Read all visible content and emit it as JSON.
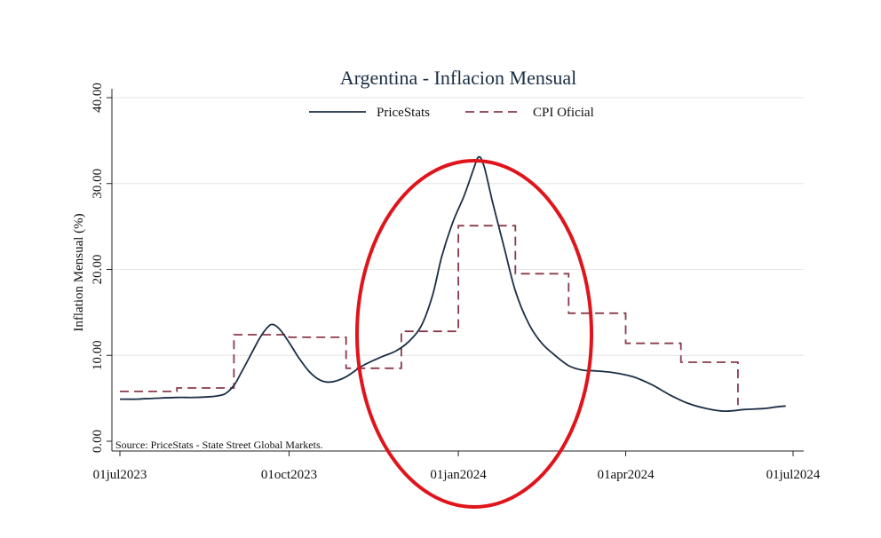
{
  "chart_data": {
    "type": "line",
    "title": "Argentina - Inflacion Mensual",
    "ylabel": "Inflation Mensual (%)",
    "xlabel": "",
    "ylim": [
      0,
      40
    ],
    "yticks": [
      "0.00",
      "10.00",
      "20.00",
      "30.00",
      "40.00"
    ],
    "xticks": [
      {
        "date": "2023-07-01",
        "label": "01jul2023"
      },
      {
        "date": "2023-10-01",
        "label": "01oct2023"
      },
      {
        "date": "2024-01-01",
        "label": "01jan2024"
      },
      {
        "date": "2024-04-01",
        "label": "01apr2024"
      },
      {
        "date": "2024-07-01",
        "label": "01jul2024"
      }
    ],
    "xlim": [
      "2023-07-01",
      "2024-07-01"
    ],
    "grid": "horizontal",
    "legend_position": "top",
    "note": "Source: PriceStats - State Street Global Markets.",
    "highlight": "red ellipse around December 2023 - February 2024",
    "series": [
      {
        "name": "PriceStats",
        "style": "solid",
        "color": "#1a2f45",
        "points": [
          [
            "2023-07-01",
            4.9
          ],
          [
            "2023-07-10",
            4.9
          ],
          [
            "2023-07-20",
            5.0
          ],
          [
            "2023-08-01",
            5.1
          ],
          [
            "2023-08-10",
            5.1
          ],
          [
            "2023-08-20",
            5.2
          ],
          [
            "2023-08-27",
            5.5
          ],
          [
            "2023-09-01",
            6.5
          ],
          [
            "2023-09-05",
            8.0
          ],
          [
            "2023-09-10",
            10.0
          ],
          [
            "2023-09-15",
            12.0
          ],
          [
            "2023-09-19",
            13.2
          ],
          [
            "2023-09-22",
            13.6
          ],
          [
            "2023-09-26",
            13.0
          ],
          [
            "2023-10-01",
            11.5
          ],
          [
            "2023-10-06",
            9.8
          ],
          [
            "2023-10-12",
            8.1
          ],
          [
            "2023-10-18",
            7.1
          ],
          [
            "2023-10-24",
            6.9
          ],
          [
            "2023-11-01",
            7.5
          ],
          [
            "2023-11-10",
            8.8
          ],
          [
            "2023-11-20",
            9.8
          ],
          [
            "2023-11-28",
            10.5
          ],
          [
            "2023-12-05",
            11.6
          ],
          [
            "2023-12-12",
            13.5
          ],
          [
            "2023-12-18",
            17.0
          ],
          [
            "2023-12-23",
            21.5
          ],
          [
            "2023-12-29",
            25.5
          ],
          [
            "2024-01-04",
            28.5
          ],
          [
            "2024-01-09",
            31.5
          ],
          [
            "2024-01-12",
            33.1
          ],
          [
            "2024-01-15",
            32.0
          ],
          [
            "2024-01-20",
            27.5
          ],
          [
            "2024-01-26",
            22.5
          ],
          [
            "2024-02-01",
            17.5
          ],
          [
            "2024-02-08",
            13.8
          ],
          [
            "2024-02-15",
            11.5
          ],
          [
            "2024-02-22",
            10.1
          ],
          [
            "2024-03-01",
            8.8
          ],
          [
            "2024-03-08",
            8.3
          ],
          [
            "2024-03-15",
            8.2
          ],
          [
            "2024-03-25",
            8.0
          ],
          [
            "2024-04-05",
            7.5
          ],
          [
            "2024-04-15",
            6.6
          ],
          [
            "2024-04-25",
            5.4
          ],
          [
            "2024-05-05",
            4.4
          ],
          [
            "2024-05-15",
            3.8
          ],
          [
            "2024-05-25",
            3.5
          ],
          [
            "2024-06-05",
            3.7
          ],
          [
            "2024-06-15",
            3.8
          ],
          [
            "2024-06-22",
            4.0
          ],
          [
            "2024-06-27",
            4.1
          ]
        ]
      },
      {
        "name": "CPI Oficial",
        "style": "dashed",
        "color": "#8a3a4a",
        "steps": [
          {
            "start": "2023-07-01",
            "end": "2023-08-01",
            "value": 5.8
          },
          {
            "start": "2023-08-01",
            "end": "2023-09-01",
            "value": 6.2
          },
          {
            "start": "2023-09-01",
            "end": "2023-10-01",
            "value": 12.4
          },
          {
            "start": "2023-10-01",
            "end": "2023-11-01",
            "value": 12.1
          },
          {
            "start": "2023-11-01",
            "end": "2023-12-01",
            "value": 8.5
          },
          {
            "start": "2023-12-01",
            "end": "2024-01-01",
            "value": 12.8
          },
          {
            "start": "2024-01-01",
            "end": "2024-02-01",
            "value": 25.1
          },
          {
            "start": "2024-02-01",
            "end": "2024-03-01",
            "value": 19.5
          },
          {
            "start": "2024-03-01",
            "end": "2024-04-01",
            "value": 14.9
          },
          {
            "start": "2024-04-01",
            "end": "2024-05-01",
            "value": 11.4
          },
          {
            "start": "2024-05-01",
            "end": "2024-06-01",
            "value": 9.2
          },
          {
            "start": "2024-06-01",
            "end": "2024-06-01",
            "value": 4.2
          }
        ]
      }
    ]
  }
}
